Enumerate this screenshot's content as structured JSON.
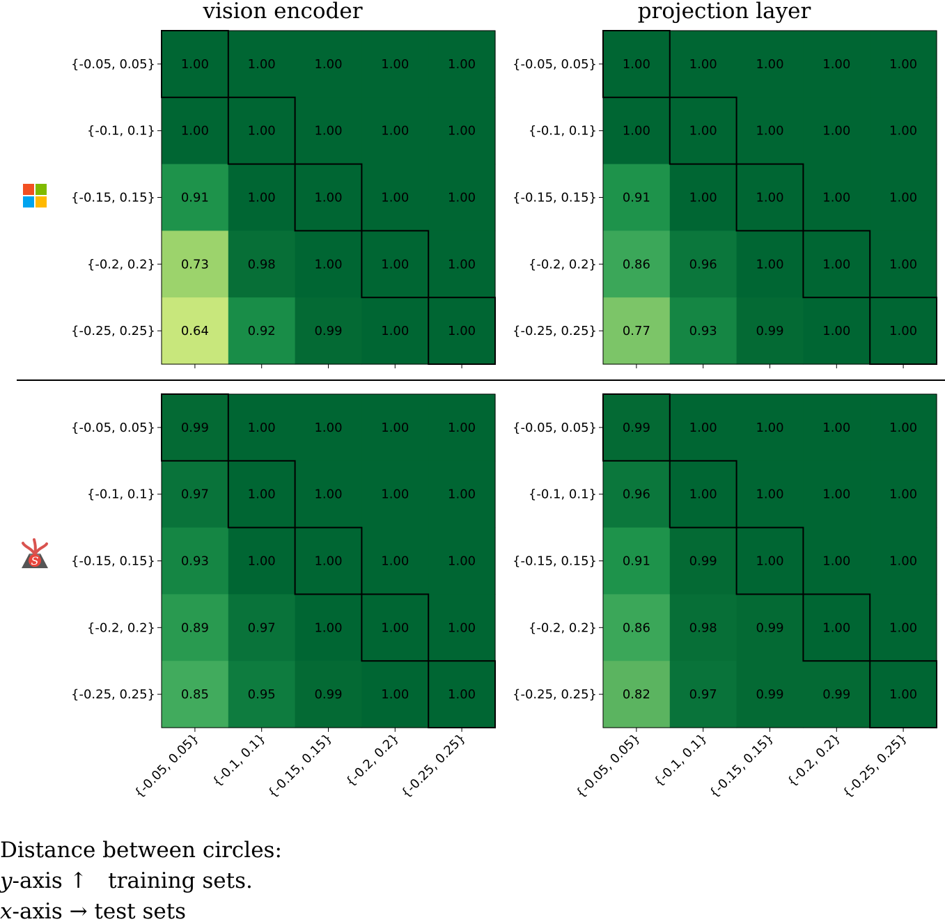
{
  "column_titles": [
    "vision encoder",
    "projection layer"
  ],
  "row_icons": [
    "microsoft-logo-icon",
    "volcano-logo-icon"
  ],
  "colors": {
    "divider": "#000000",
    "staircase": "#000000"
  },
  "caption": {
    "line1": "Distance between circles:",
    "line2_var": "y",
    "line2_rest": "-axis ↑   training sets.",
    "line3_var": "x",
    "line3_rest": "-axis → test sets"
  },
  "chart_data": [
    {
      "type": "heatmap",
      "title": "vision encoder",
      "row_group": "microsoft",
      "ylabels": [
        "{-0.05, 0.05}",
        "{-0.1, 0.1}",
        "{-0.15, 0.15}",
        "{-0.2, 0.2}",
        "{-0.25, 0.25}"
      ],
      "xlabels": [
        "{-0.05, 0.05}",
        "{-0.1, 0.1}",
        "{-0.15, 0.15}",
        "{-0.2, 0.2}",
        "{-0.25, 0.25}"
      ],
      "show_xticklabels": false,
      "colormap": "YlGn",
      "vmin": 0.5,
      "vmax": 1.0,
      "values": [
        [
          1.0,
          1.0,
          1.0,
          1.0,
          1.0
        ],
        [
          1.0,
          1.0,
          1.0,
          1.0,
          1.0
        ],
        [
          0.91,
          1.0,
          1.0,
          1.0,
          1.0
        ],
        [
          0.73,
          0.98,
          1.0,
          1.0,
          1.0
        ],
        [
          0.64,
          0.92,
          0.99,
          1.0,
          1.0
        ]
      ]
    },
    {
      "type": "heatmap",
      "title": "projection layer",
      "row_group": "microsoft",
      "ylabels": [
        "{-0.05, 0.05}",
        "{-0.1, 0.1}",
        "{-0.15, 0.15}",
        "{-0.2, 0.2}",
        "{-0.25, 0.25}"
      ],
      "xlabels": [
        "{-0.05, 0.05}",
        "{-0.1, 0.1}",
        "{-0.15, 0.15}",
        "{-0.2, 0.2}",
        "{-0.25, 0.25}"
      ],
      "show_xticklabels": false,
      "colormap": "YlGn",
      "vmin": 0.5,
      "vmax": 1.0,
      "values": [
        [
          1.0,
          1.0,
          1.0,
          1.0,
          1.0
        ],
        [
          1.0,
          1.0,
          1.0,
          1.0,
          1.0
        ],
        [
          0.91,
          1.0,
          1.0,
          1.0,
          1.0
        ],
        [
          0.86,
          0.96,
          1.0,
          1.0,
          1.0
        ],
        [
          0.77,
          0.93,
          0.99,
          1.0,
          1.0
        ]
      ]
    },
    {
      "type": "heatmap",
      "title": "",
      "row_group": "volcano",
      "ylabels": [
        "{-0.05, 0.05}",
        "{-0.1, 0.1}",
        "{-0.15, 0.15}",
        "{-0.2, 0.2}",
        "{-0.25, 0.25}"
      ],
      "xlabels": [
        "{-0.05, 0.05}",
        "{-0.1, 0.1}",
        "{-0.15, 0.15}",
        "{-0.2, 0.2}",
        "{-0.25, 0.25}"
      ],
      "show_xticklabels": true,
      "colormap": "YlGn",
      "vmin": 0.5,
      "vmax": 1.0,
      "values": [
        [
          0.99,
          1.0,
          1.0,
          1.0,
          1.0
        ],
        [
          0.97,
          1.0,
          1.0,
          1.0,
          1.0
        ],
        [
          0.93,
          1.0,
          1.0,
          1.0,
          1.0
        ],
        [
          0.89,
          0.97,
          1.0,
          1.0,
          1.0
        ],
        [
          0.85,
          0.95,
          0.99,
          1.0,
          1.0
        ]
      ]
    },
    {
      "type": "heatmap",
      "title": "",
      "row_group": "volcano",
      "ylabels": [
        "{-0.05, 0.05}",
        "{-0.1, 0.1}",
        "{-0.15, 0.15}",
        "{-0.2, 0.2}",
        "{-0.25, 0.25}"
      ],
      "xlabels": [
        "{-0.05, 0.05}",
        "{-0.1, 0.1}",
        "{-0.15, 0.15}",
        "{-0.2, 0.2}",
        "{-0.25, 0.25}"
      ],
      "show_xticklabels": true,
      "colormap": "YlGn",
      "vmin": 0.5,
      "vmax": 1.0,
      "values": [
        [
          0.99,
          1.0,
          1.0,
          1.0,
          1.0
        ],
        [
          0.96,
          1.0,
          1.0,
          1.0,
          1.0
        ],
        [
          0.91,
          0.99,
          1.0,
          1.0,
          1.0
        ],
        [
          0.86,
          0.98,
          0.99,
          1.0,
          1.0
        ],
        [
          0.82,
          0.97,
          0.99,
          0.99,
          1.0
        ]
      ]
    }
  ]
}
